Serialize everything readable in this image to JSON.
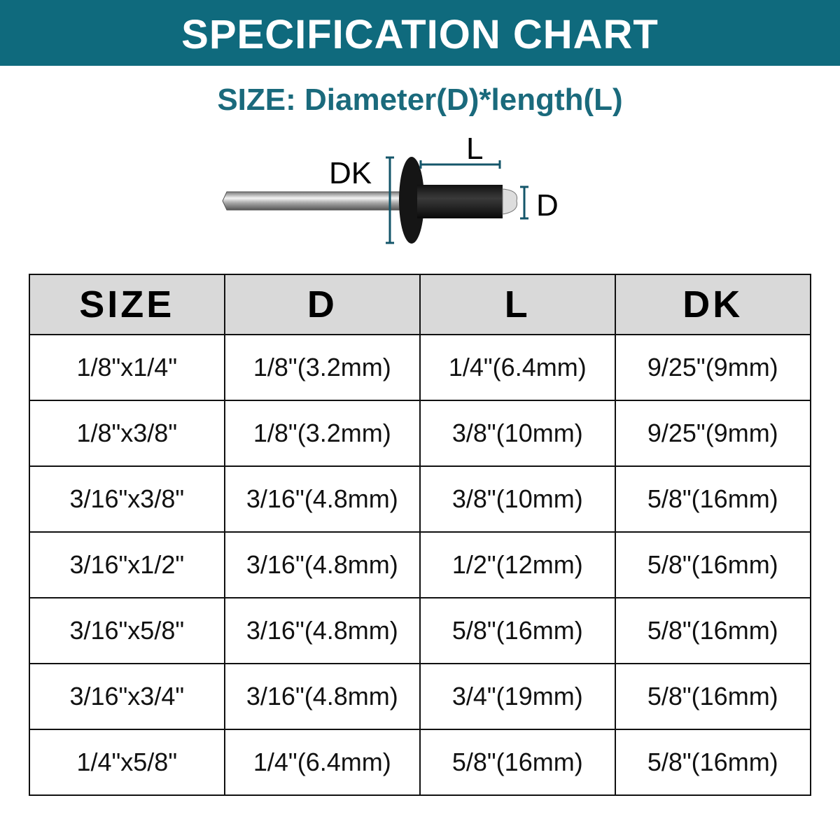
{
  "banner_title": "SPECIFICATION CHART",
  "subtitle": "SIZE: Diameter(D)*length(L)",
  "colors": {
    "accent": "#0f6a7d",
    "header_bg": "#d9d9d9"
  },
  "diagram": {
    "labels": {
      "dk": "DK",
      "l": "L",
      "d": "D"
    },
    "icon": "blind-rivet-diagram"
  },
  "table": {
    "headers": [
      "SIZE",
      "D",
      "L",
      "DK"
    ],
    "rows": [
      [
        "1/8\"x1/4\"",
        "1/8\"(3.2mm)",
        "1/4\"(6.4mm)",
        "9/25\"(9mm)"
      ],
      [
        "1/8\"x3/8\"",
        "1/8\"(3.2mm)",
        "3/8\"(10mm)",
        "9/25\"(9mm)"
      ],
      [
        "3/16\"x3/8\"",
        "3/16\"(4.8mm)",
        "3/8\"(10mm)",
        "5/8\"(16mm)"
      ],
      [
        "3/16\"x1/2\"",
        "3/16\"(4.8mm)",
        "1/2\"(12mm)",
        "5/8\"(16mm)"
      ],
      [
        "3/16\"x5/8\"",
        "3/16\"(4.8mm)",
        "5/8\"(16mm)",
        "5/8\"(16mm)"
      ],
      [
        "3/16\"x3/4\"",
        "3/16\"(4.8mm)",
        "3/4\"(19mm)",
        "5/8\"(16mm)"
      ],
      [
        "1/4\"x5/8\"",
        "1/4\"(6.4mm)",
        "5/8\"(16mm)",
        "5/8\"(16mm)"
      ]
    ]
  }
}
